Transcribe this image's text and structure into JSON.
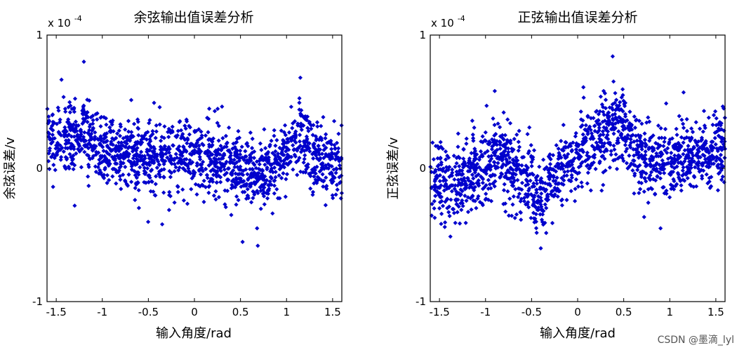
{
  "chart_data": [
    {
      "type": "scatter",
      "title": "余弦输出值误差分析",
      "xlabel": "输入角度/rad",
      "ylabel": "余弦误差/v",
      "y_multiplier": {
        "base": "x 10",
        "exponent": "-4"
      },
      "xlim": [
        -1.6,
        1.6
      ],
      "ylim": [
        -1,
        1
      ],
      "xticks": [
        "-1.5",
        "-1",
        "-0.5",
        "0",
        "0.5",
        "1",
        "1.5"
      ],
      "xtick_values": [
        -1.5,
        -1,
        -0.5,
        0,
        0.5,
        1,
        1.5
      ],
      "yticks": [
        "-1",
        "0",
        "1"
      ],
      "ytick_values": [
        -1,
        0,
        1
      ],
      "grid": false,
      "marker_color": "#0000cc",
      "trend": {
        "x": [
          -1.6,
          -1.45,
          -1.3,
          -1.2,
          -1.1,
          -1.0,
          -0.8,
          -0.6,
          -0.4,
          -0.2,
          0.0,
          0.2,
          0.4,
          0.6,
          0.7,
          0.8,
          1.0,
          1.1,
          1.2,
          1.35,
          1.5,
          1.6
        ],
        "y": [
          0.22,
          0.22,
          0.2,
          0.3,
          0.22,
          0.16,
          0.12,
          0.1,
          0.1,
          0.09,
          0.08,
          0.07,
          0.03,
          -0.03,
          -0.06,
          -0.02,
          0.1,
          0.2,
          0.2,
          0.08,
          0.05,
          0.05
        ]
      },
      "spread": 0.13,
      "extremes": [
        [
          -1.2,
          0.8
        ],
        [
          1.15,
          0.68
        ],
        [
          0.68,
          -0.45
        ],
        [
          -0.35,
          -0.42
        ],
        [
          -1.3,
          -0.28
        ],
        [
          0.4,
          -0.35
        ]
      ]
    },
    {
      "type": "scatter",
      "title": "正弦输出值误差分析",
      "xlabel": "输入角度/rad",
      "ylabel": "正弦误差/v",
      "y_multiplier": {
        "base": "x 10",
        "exponent": "-4"
      },
      "xlim": [
        -1.6,
        1.6
      ],
      "ylim": [
        -1,
        1
      ],
      "xticks": [
        "-1.5",
        "-1",
        "-0.5",
        "0",
        "0.5",
        "1",
        "1.5"
      ],
      "xtick_values": [
        -1.5,
        -1,
        -0.5,
        0,
        0.5,
        1,
        1.5
      ],
      "yticks": [
        "-1",
        "0",
        "1"
      ],
      "ytick_values": [
        -1,
        0,
        1
      ],
      "grid": false,
      "marker_color": "#0000cc",
      "trend": {
        "x": [
          -1.6,
          -1.4,
          -1.2,
          -1.0,
          -0.9,
          -0.8,
          -0.6,
          -0.5,
          -0.4,
          -0.3,
          -0.2,
          0.0,
          0.2,
          0.4,
          0.5,
          0.6,
          0.8,
          1.0,
          1.2,
          1.4,
          1.6
        ],
        "y": [
          -0.12,
          -0.12,
          -0.08,
          0.0,
          0.08,
          0.05,
          -0.05,
          -0.1,
          -0.25,
          -0.1,
          -0.02,
          0.1,
          0.18,
          0.35,
          0.3,
          0.18,
          0.08,
          0.02,
          0.08,
          0.12,
          0.15
        ]
      },
      "spread": 0.14,
      "extremes": [
        [
          0.38,
          0.84
        ],
        [
          -0.4,
          -0.6
        ],
        [
          -0.9,
          0.58
        ],
        [
          1.15,
          0.57
        ],
        [
          -1.5,
          -0.3
        ],
        [
          0.9,
          -0.45
        ]
      ]
    }
  ],
  "watermark": "CSDN @墨滴_lyl"
}
